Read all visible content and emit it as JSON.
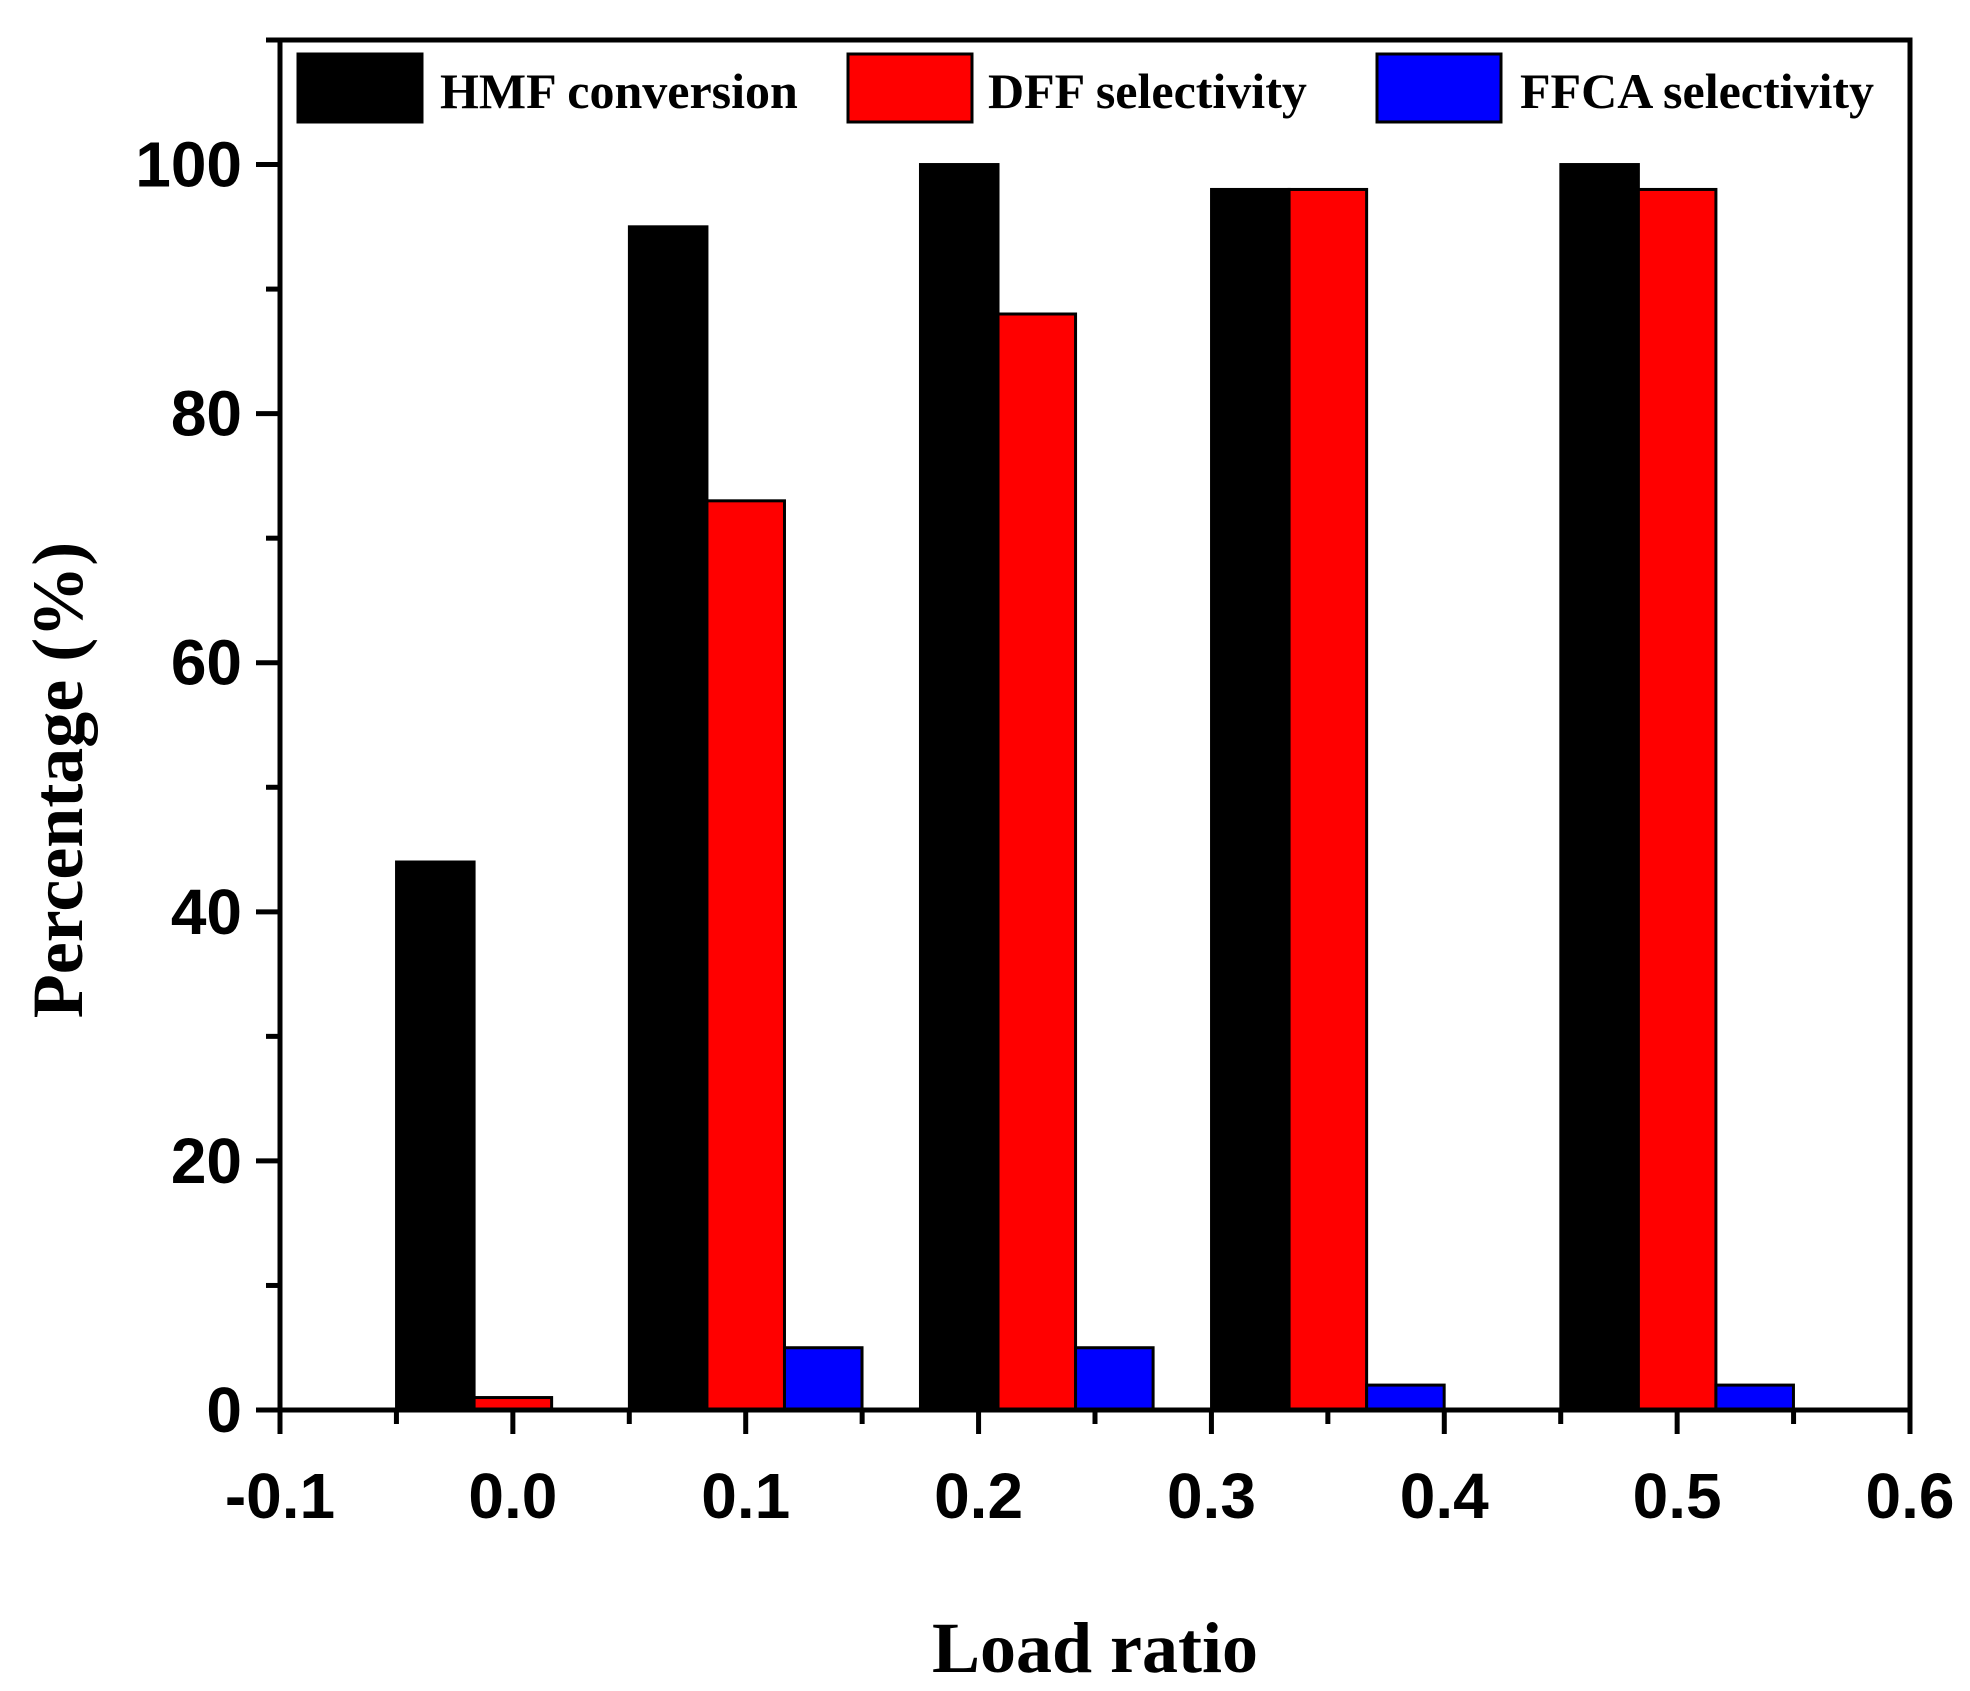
{
  "chart_data": {
    "type": "bar",
    "xlabel": "Load ratio",
    "ylabel": "Percentage (%)",
    "xlim": [
      -0.1,
      0.6
    ],
    "ylim": [
      0,
      110
    ],
    "x_ticks": [
      "-0.1",
      "0.0",
      "0.1",
      "0.2",
      "0.3",
      "0.4",
      "0.5",
      "0.6"
    ],
    "y_ticks": [
      "0",
      "20",
      "40",
      "60",
      "80",
      "100"
    ],
    "x": [
      0.0,
      0.1,
      0.225,
      0.35,
      0.5
    ],
    "series": [
      {
        "name": "HMF conversion",
        "color": "#000000",
        "values": [
          44,
          95,
          100,
          98,
          100
        ]
      },
      {
        "name": "DFF selectivity",
        "color": "#ff0000",
        "values": [
          1,
          73,
          88,
          98,
          98
        ]
      },
      {
        "name": "FFCA selectivity",
        "color": "#0000ff",
        "values": [
          0,
          5,
          5,
          2,
          2
        ]
      }
    ],
    "legend": {
      "position": "top",
      "orientation": "horizontal"
    },
    "grid": false
  }
}
